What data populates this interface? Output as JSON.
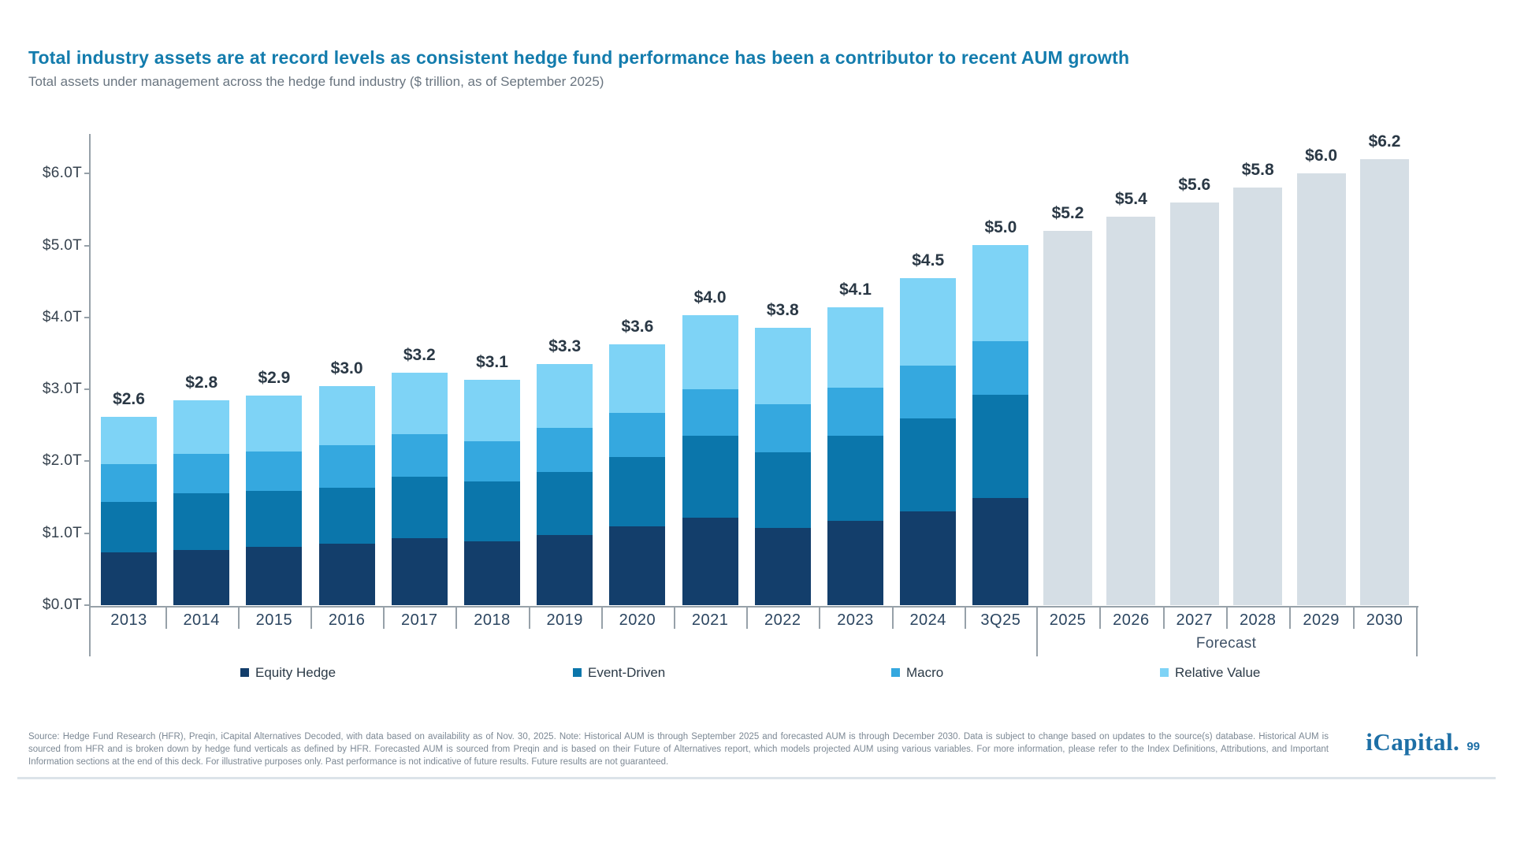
{
  "header": {
    "title": "Total industry assets are at record levels as consistent hedge fund performance has been a contributor to recent AUM growth",
    "subtitle": "Total assets under management across the hedge fund industry ($ trillion, as of September 2025)"
  },
  "colors": {
    "title_accent": "#137CAD",
    "equity_hedge": "#133E6B",
    "event_driven": "#0B76AB",
    "macro": "#35A8DF",
    "relative_value": "#7ED3F6",
    "forecast_bar": "#D5DEE5",
    "axis": "#97A1A9",
    "value_label": "#2A3845",
    "logo_blue": "#1D6FA6"
  },
  "chart_data": {
    "type": "bar",
    "stacked": true,
    "title": "Total assets under management across the hedge fund industry",
    "unit": "$ trillion",
    "ylim": [
      0,
      6.55
    ],
    "grid": false,
    "legend_position": "bottom",
    "y_ticks": [
      {
        "value": 0,
        "label": "$0.0T"
      },
      {
        "value": 1,
        "label": "$1.0T"
      },
      {
        "value": 2,
        "label": "$2.0T"
      },
      {
        "value": 3,
        "label": "$3.0T"
      },
      {
        "value": 4,
        "label": "$4.0T"
      },
      {
        "value": 5,
        "label": "$5.0T"
      },
      {
        "value": 6,
        "label": "$6.0T"
      }
    ],
    "historical": {
      "categories": [
        "2013",
        "2014",
        "2015",
        "2016",
        "2017",
        "2018",
        "2019",
        "2020",
        "2021",
        "2022",
        "2023",
        "2024",
        "3Q25"
      ],
      "series": [
        {
          "name": "Equity Hedge",
          "color": "#133E6B",
          "values": [
            0.73,
            0.77,
            0.81,
            0.85,
            0.93,
            0.89,
            0.97,
            1.09,
            1.22,
            1.07,
            1.17,
            1.3,
            1.49
          ]
        },
        {
          "name": "Event-Driven",
          "color": "#0B76AB",
          "values": [
            0.71,
            0.79,
            0.78,
            0.78,
            0.85,
            0.83,
            0.88,
            0.97,
            1.13,
            1.05,
            1.18,
            1.3,
            1.43
          ]
        },
        {
          "name": "Macro",
          "color": "#35A8DF",
          "values": [
            0.52,
            0.54,
            0.55,
            0.59,
            0.6,
            0.56,
            0.61,
            0.61,
            0.65,
            0.67,
            0.67,
            0.73,
            0.75
          ]
        },
        {
          "name": "Relative Value",
          "color": "#7ED3F6",
          "values": [
            0.66,
            0.75,
            0.77,
            0.83,
            0.85,
            0.85,
            0.89,
            0.95,
            1.03,
            1.07,
            1.12,
            1.21,
            1.34
          ]
        }
      ],
      "totals": [
        2.6,
        2.8,
        2.9,
        3.0,
        3.2,
        3.1,
        3.3,
        3.6,
        4.0,
        3.8,
        4.1,
        4.5,
        5.0
      ],
      "total_labels": [
        "$2.6",
        "$2.8",
        "$2.9",
        "$3.0",
        "$3.2",
        "$3.1",
        "$3.3",
        "$3.6",
        "$4.0",
        "$3.8",
        "$4.1",
        "$4.5",
        "$5.0"
      ]
    },
    "forecast": {
      "categories": [
        "2025",
        "2026",
        "2027",
        "2028",
        "2029",
        "2030"
      ],
      "totals": [
        5.2,
        5.4,
        5.6,
        5.8,
        6.0,
        6.2
      ],
      "total_labels": [
        "$5.2",
        "$5.4",
        "$5.6",
        "$5.8",
        "$6.0",
        "$6.2"
      ],
      "color": "#D5DEE5",
      "group_label": "Forecast"
    },
    "legend": [
      {
        "label": "Equity Hedge",
        "color": "#133E6B"
      },
      {
        "label": "Event-Driven",
        "color": "#0B76AB"
      },
      {
        "label": "Macro",
        "color": "#35A8DF"
      },
      {
        "label": "Relative Value",
        "color": "#7ED3F6"
      }
    ]
  },
  "footer": {
    "disclaimer": "Source: Hedge Fund Research (HFR), Preqin, iCapital Alternatives Decoded, with data based on availability as of Nov. 30, 2025. Note: Historical AUM is through September 2025 and forecasted AUM is through December 2030. Data is subject to change based on updates to the source(s) database. Historical AUM is sourced from HFR and is broken down by hedge fund verticals as defined by HFR. Forecasted AUM is sourced from Preqin and is based on their Future of Alternatives report, which models projected AUM using various variables. For more information, please refer to the Index Definitions, Attributions, and Important Information sections at the end of this deck. For illustrative purposes only. Past performance is not indicative of future results. Future results are not guaranteed.",
    "logo_wordmark": "iCapital.",
    "page_number": "99"
  }
}
